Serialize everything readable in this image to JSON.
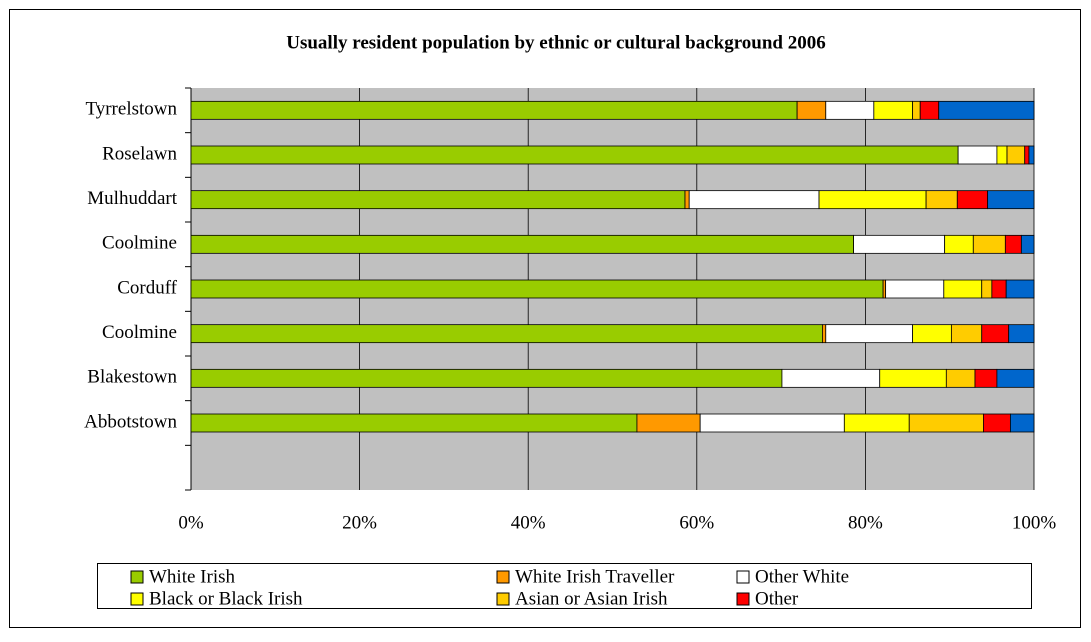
{
  "chart_data": {
    "type": "stacked_barh",
    "title": "Usually resident population by ethnic or cultural background 2006",
    "categories": [
      "Tyrrelstown",
      "Roselawn",
      "Mulhuddart",
      "Coolmine",
      "Corduff",
      "Coolmine",
      "Blakestown",
      "Abbotstown",
      null
    ],
    "series": [
      {
        "name": "White Irish",
        "color": "#99cc00",
        "values": [
          71.9,
          91.0,
          58.6,
          78.6,
          82.1,
          74.9,
          70.1,
          52.9,
          null
        ]
      },
      {
        "name": "White Irish Traveller",
        "color": "#ff9900",
        "values": [
          3.4,
          0,
          0.5,
          0,
          0.3,
          0.4,
          0,
          7.5,
          null
        ]
      },
      {
        "name": "Other White",
        "color": "#ffffff",
        "values": [
          5.7,
          4.6,
          15.4,
          10.8,
          6.9,
          10.3,
          11.6,
          17.1,
          null
        ]
      },
      {
        "name": "Black or Black Irish",
        "color": "#ffff00",
        "values": [
          4.6,
          1.2,
          12.7,
          3.4,
          4.5,
          4.6,
          7.9,
          7.7,
          null
        ]
      },
      {
        "name": "Asian or Asian Irish",
        "color": "#ffcc00",
        "values": [
          0.9,
          2.1,
          3.7,
          3.8,
          1.2,
          3.6,
          3.4,
          8.8,
          null
        ]
      },
      {
        "name": "Other",
        "color": "#ff0000",
        "values": [
          2.2,
          0.5,
          3.6,
          1.9,
          1.7,
          3.2,
          2.6,
          3.2,
          null
        ]
      },
      {
        "color": "#0066cc",
        "values": [
          11.3,
          0.6,
          5.5,
          1.5,
          3.3,
          3.0,
          4.4,
          2.8,
          null
        ]
      }
    ],
    "xlim": [
      0,
      100
    ],
    "xticks": [
      {
        "value": 0,
        "label": "0%"
      },
      {
        "value": 20,
        "label": "20%"
      },
      {
        "value": 40,
        "label": "40%"
      },
      {
        "value": 60,
        "label": "60%"
      },
      {
        "value": 80,
        "label": "80%"
      },
      {
        "value": 100,
        "label": "100%"
      }
    ],
    "grid": true,
    "legend": "bottom"
  }
}
